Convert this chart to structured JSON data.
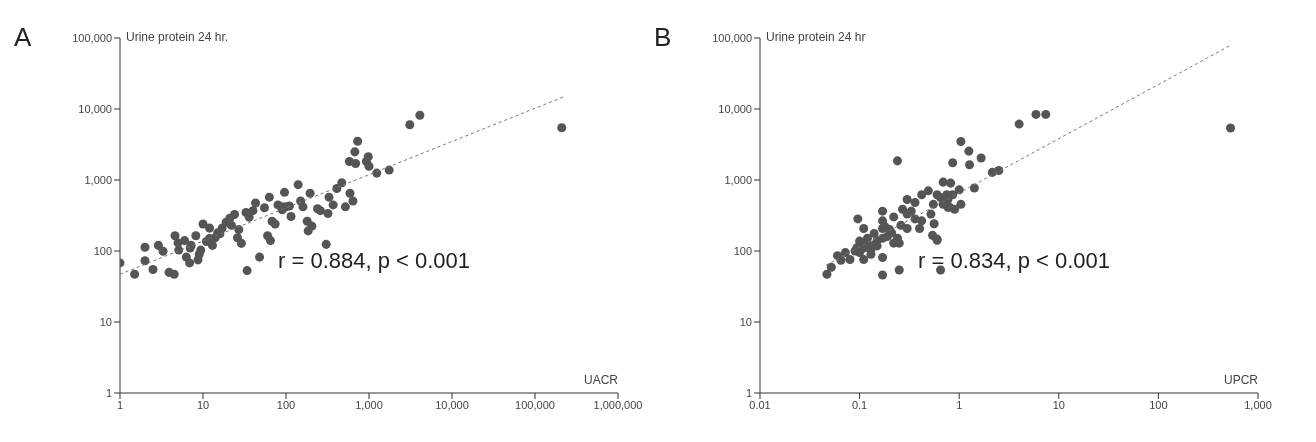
{
  "chart_data": [
    {
      "type": "scatter",
      "title": "A",
      "xlabel": "UACR",
      "ylabel": "Urine protein 24 hr.",
      "log": "xy",
      "marker": "circle",
      "xlim": [
        1,
        1000000
      ],
      "ylim": [
        1,
        100000
      ],
      "xticks": [
        1,
        10,
        100,
        {
          "value": 1000,
          "label": "1,000"
        },
        {
          "value": 10000,
          "label": "10,000"
        },
        {
          "value": 100000,
          "label": "100,000"
        },
        {
          "value": 1000000,
          "label": "1,000,000"
        }
      ],
      "yticks": [
        1,
        10,
        100,
        {
          "value": 1000,
          "label": "1,000"
        },
        {
          "value": 10000,
          "label": "10,000"
        },
        {
          "value": 100000,
          "label": "100,000"
        }
      ],
      "annotations": [
        "r = 0.884, p < 0.001"
      ],
      "series": [
        {
          "type": "scatter",
          "color": "#555555",
          "x": [
            1,
            1.5,
            2.0,
            2.0,
            2.5,
            2.9,
            3.3,
            3.9,
            4.5,
            4.6,
            5.1,
            6.0,
            6.3,
            6.9,
            7.2,
            8.2,
            8.7,
            9.4,
            10,
            11,
            12,
            13,
            14,
            16,
            17,
            19,
            21,
            24,
            26,
            29,
            34,
            33,
            40,
            43,
            48,
            55,
            60,
            65,
            63,
            68,
            74,
            80,
            89,
            96,
            100,
            115,
            140,
            150,
            160,
            180,
            185,
            205,
            195,
            240,
            260,
            305,
            320,
            330,
            370,
            410,
            470,
            520,
            590,
            640,
            690,
            675,
            730,
            580,
            980,
            930,
            1000,
            1240,
            1750,
            3100,
            4100,
            210000,
            5,
            7,
            9,
            12,
            15,
            22,
            27,
            36,
            90,
            110
          ],
          "values": [
            68,
            47,
            73,
            113,
            55,
            120,
            99,
            50,
            47,
            164,
            103,
            140,
            82,
            68,
            120,
            164,
            75,
            103,
            240,
            136,
            210,
            120,
            154,
            175,
            210,
            254,
            288,
            326,
            154,
            128,
            53,
            348,
            370,
            475,
            82,
            406,
            164,
            140,
            573,
            262,
            240,
            446,
            419,
            670,
            419,
            306,
            860,
            506,
            419,
            262,
            192,
            224,
            650,
            394,
            370,
            124,
            337,
            573,
            446,
            760,
            916,
            419,
            650,
            506,
            1710,
            2490,
            3520,
            1820,
            2130,
            1820,
            1560,
            1250,
            1380,
            5990,
            8180,
            5450,
            130,
            110,
            90,
            150,
            180,
            230,
            200,
            300,
            380,
            430
          ]
        },
        {
          "type": "line",
          "color": "#777777",
          "line_style": "dashed",
          "marker": "none",
          "x": [
            1,
            220000
          ],
          "values": [
            47,
            14800
          ]
        }
      ]
    },
    {
      "type": "scatter",
      "title": "B",
      "xlabel": "UPCR",
      "ylabel": "Urine protein 24 hr",
      "log": "xy",
      "marker": "circle",
      "xlim": [
        0.01,
        1000
      ],
      "ylim": [
        1,
        100000
      ],
      "xticks": [
        0.01,
        0.1,
        1,
        10,
        100,
        {
          "value": 1000,
          "label": "1,000"
        }
      ],
      "yticks": [
        1,
        10,
        100,
        {
          "value": 1000,
          "label": "1,000"
        },
        {
          "value": 10000,
          "label": "10,000"
        },
        {
          "value": 100000,
          "label": "100,000"
        }
      ],
      "annotations": [
        "r = 0.834, p < 0.001"
      ],
      "series": [
        {
          "type": "scatter",
          "color": "#555555",
          "x": [
            0.047,
            0.052,
            0.06,
            0.065,
            0.072,
            0.08,
            0.094,
            0.1,
            0.11,
            0.12,
            0.13,
            0.11,
            0.12,
            0.14,
            0.15,
            0.17,
            0.17,
            0.18,
            0.17,
            0.17,
            0.096,
            0.17,
            0.22,
            0.24,
            0.17,
            0.25,
            0.27,
            0.3,
            0.22,
            0.33,
            0.36,
            0.3,
            0.36,
            0.42,
            0.42,
            0.49,
            0.52,
            0.55,
            0.6,
            0.65,
            0.56,
            0.24,
            0.25,
            0.54,
            0.6,
            0.65,
            0.3,
            0.4,
            0.6,
            0.69,
            0.86,
            0.9,
            1.0,
            0.8,
            1.04,
            0.86,
            0.82,
            0.77,
            1.04,
            1.25,
            1.27,
            1.66,
            1.42,
            2.15,
            2.5,
            0.75,
            0.69,
            0.77,
            4.0,
            5.9,
            7.4,
            530,
            0.09,
            0.1,
            0.11,
            0.13,
            0.14,
            0.15,
            0.19,
            0.2,
            0.21,
            0.26
          ],
          "values": [
            47,
            59,
            86,
            74,
            95,
            76,
            111,
            138,
            207,
            151,
            104,
            76,
            129,
            177,
            118,
            207,
            151,
            220,
            46,
            364,
            283,
            266,
            302,
            151,
            81,
            54,
            388,
            531,
            129,
            364,
            283,
            207,
            483,
            621,
            266,
            704,
            331,
            454,
            621,
            565,
            242,
            1860,
            129,
            166,
            147,
            54,
            331,
            207,
            142,
            933,
            621,
            388,
            727,
            413,
            454,
            1750,
            904,
            531,
            3490,
            2550,
            1640,
            2040,
            773,
            1280,
            1360,
            621,
            454,
            413,
            6130,
            8390,
            8390,
            5410,
            100,
            95,
            110,
            90,
            120,
            140,
            160,
            200,
            180,
            230
          ]
        },
        {
          "type": "line",
          "color": "#777777",
          "line_style": "dashed",
          "marker": "none",
          "x": [
            0.046,
            540
          ],
          "values": [
            63,
            80000
          ]
        }
      ]
    }
  ]
}
